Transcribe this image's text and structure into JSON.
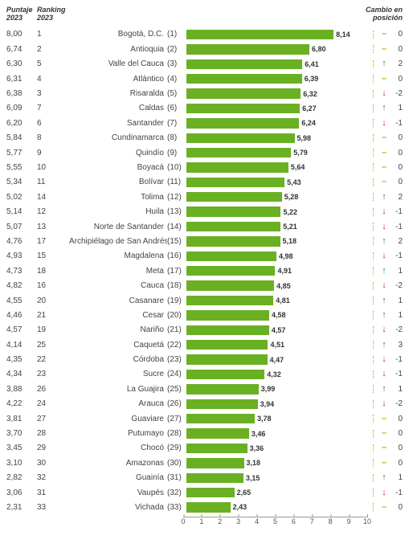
{
  "headers": {
    "score": "Puntaje 2023",
    "rank": "Ranking 2023",
    "change": "Cambio en posición"
  },
  "axis": {
    "min": 0,
    "max": 10,
    "step": 1
  },
  "colors": {
    "bar": "#6ab023",
    "up": "#2e8b20",
    "down": "#c62222",
    "eq": "#c9a800",
    "sep": "#c9a800"
  },
  "rows": [
    {
      "score": "8,00",
      "rank": "1",
      "label": "Bogotá, D.C.",
      "num": "(1)",
      "value": 8.14,
      "vlabel": "8,14",
      "dir": "eq",
      "delta": "0"
    },
    {
      "score": "6,74",
      "rank": "2",
      "label": "Antioquia",
      "num": "(2)",
      "value": 6.8,
      "vlabel": "6,80",
      "dir": "eq",
      "delta": "0"
    },
    {
      "score": "6,30",
      "rank": "5",
      "label": "Valle del Cauca",
      "num": "(3)",
      "value": 6.41,
      "vlabel": "6,41",
      "dir": "up",
      "delta": "2"
    },
    {
      "score": "6,31",
      "rank": "4",
      "label": "Atlántico",
      "num": "(4)",
      "value": 6.39,
      "vlabel": "6,39",
      "dir": "eq",
      "delta": "0"
    },
    {
      "score": "6,38",
      "rank": "3",
      "label": "Risaralda",
      "num": "(5)",
      "value": 6.32,
      "vlabel": "6,32",
      "dir": "down",
      "delta": "-2"
    },
    {
      "score": "6,09",
      "rank": "7",
      "label": "Caldas",
      "num": "(6)",
      "value": 6.27,
      "vlabel": "6,27",
      "dir": "up",
      "delta": "1"
    },
    {
      "score": "6,20",
      "rank": "6",
      "label": "Santander",
      "num": "(7)",
      "value": 6.24,
      "vlabel": "6,24",
      "dir": "down",
      "delta": "-1"
    },
    {
      "score": "5,84",
      "rank": "8",
      "label": "Cundinamarca",
      "num": "(8)",
      "value": 5.98,
      "vlabel": "5,98",
      "dir": "eq",
      "delta": "0"
    },
    {
      "score": "5,77",
      "rank": "9",
      "label": "Quindío",
      "num": "(9)",
      "value": 5.79,
      "vlabel": "5,79",
      "dir": "eq",
      "delta": "0"
    },
    {
      "score": "5,55",
      "rank": "10",
      "label": "Boyacá",
      "num": "(10)",
      "value": 5.64,
      "vlabel": "5,64",
      "dir": "eq",
      "delta": "0"
    },
    {
      "score": "5,34",
      "rank": "11",
      "label": "Bolívar",
      "num": "(11)",
      "value": 5.43,
      "vlabel": "5,43",
      "dir": "eq",
      "delta": "0"
    },
    {
      "score": "5,02",
      "rank": "14",
      "label": "Tolima",
      "num": "(12)",
      "value": 5.28,
      "vlabel": "5,28",
      "dir": "up",
      "delta": "2"
    },
    {
      "score": "5,14",
      "rank": "12",
      "label": "Huila",
      "num": "(13)",
      "value": 5.22,
      "vlabel": "5,22",
      "dir": "down",
      "delta": "-1"
    },
    {
      "score": "5,07",
      "rank": "13",
      "label": "Norte de Santander",
      "num": "(14)",
      "value": 5.21,
      "vlabel": "5,21",
      "dir": "down",
      "delta": "-1"
    },
    {
      "score": "4,76",
      "rank": "17",
      "label": "Archipiélago de San Andrés",
      "num": "(15)",
      "value": 5.18,
      "vlabel": "5,18",
      "dir": "up",
      "delta": "2"
    },
    {
      "score": "4,93",
      "rank": "15",
      "label": "Magdalena",
      "num": "(16)",
      "value": 4.98,
      "vlabel": "4,98",
      "dir": "down",
      "delta": "-1"
    },
    {
      "score": "4,73",
      "rank": "18",
      "label": "Meta",
      "num": "(17)",
      "value": 4.91,
      "vlabel": "4,91",
      "dir": "up",
      "delta": "1"
    },
    {
      "score": "4,82",
      "rank": "16",
      "label": "Cauca",
      "num": "(18)",
      "value": 4.85,
      "vlabel": "4,85",
      "dir": "down",
      "delta": "-2"
    },
    {
      "score": "4,55",
      "rank": "20",
      "label": "Casanare",
      "num": "(19)",
      "value": 4.81,
      "vlabel": "4,81",
      "dir": "up",
      "delta": "1"
    },
    {
      "score": "4,46",
      "rank": "21",
      "label": "Cesar",
      "num": "(20)",
      "value": 4.58,
      "vlabel": "4,58",
      "dir": "up",
      "delta": "1"
    },
    {
      "score": "4,57",
      "rank": "19",
      "label": "Nariño",
      "num": "(21)",
      "value": 4.57,
      "vlabel": "4,57",
      "dir": "down",
      "delta": "-2"
    },
    {
      "score": "4,14",
      "rank": "25",
      "label": "Caquetá",
      "num": "(22)",
      "value": 4.51,
      "vlabel": "4,51",
      "dir": "up",
      "delta": "3"
    },
    {
      "score": "4,35",
      "rank": "22",
      "label": "Córdoba",
      "num": "(23)",
      "value": 4.47,
      "vlabel": "4,47",
      "dir": "down",
      "delta": "-1"
    },
    {
      "score": "4,34",
      "rank": "23",
      "label": "Sucre",
      "num": "(24)",
      "value": 4.32,
      "vlabel": "4,32",
      "dir": "down",
      "delta": "-1"
    },
    {
      "score": "3,88",
      "rank": "26",
      "label": "La Guajira",
      "num": "(25)",
      "value": 3.99,
      "vlabel": "3,99",
      "dir": "up",
      "delta": "1"
    },
    {
      "score": "4,22",
      "rank": "24",
      "label": "Arauca",
      "num": "(26)",
      "value": 3.94,
      "vlabel": "3,94",
      "dir": "down",
      "delta": "-2"
    },
    {
      "score": "3,81",
      "rank": "27",
      "label": "Guaviare",
      "num": "(27)",
      "value": 3.78,
      "vlabel": "3,78",
      "dir": "eq",
      "delta": "0"
    },
    {
      "score": "3,70",
      "rank": "28",
      "label": "Putumayo",
      "num": "(28)",
      "value": 3.46,
      "vlabel": "3,46",
      "dir": "eq",
      "delta": "0"
    },
    {
      "score": "3,45",
      "rank": "29",
      "label": "Chocó",
      "num": "(29)",
      "value": 3.36,
      "vlabel": "3,36",
      "dir": "eq",
      "delta": "0"
    },
    {
      "score": "3,10",
      "rank": "30",
      "label": "Amazonas",
      "num": "(30)",
      "value": 3.18,
      "vlabel": "3,18",
      "dir": "eq",
      "delta": "0"
    },
    {
      "score": "2,82",
      "rank": "32",
      "label": "Guainía",
      "num": "(31)",
      "value": 3.15,
      "vlabel": "3,15",
      "dir": "up",
      "delta": "1"
    },
    {
      "score": "3,06",
      "rank": "31",
      "label": "Vaupés",
      "num": "(32)",
      "value": 2.65,
      "vlabel": "2,65",
      "dir": "down",
      "delta": "-1"
    },
    {
      "score": "2,31",
      "rank": "33",
      "label": "Vichada",
      "num": "(33)",
      "value": 2.43,
      "vlabel": "2,43",
      "dir": "eq",
      "delta": "0"
    }
  ]
}
